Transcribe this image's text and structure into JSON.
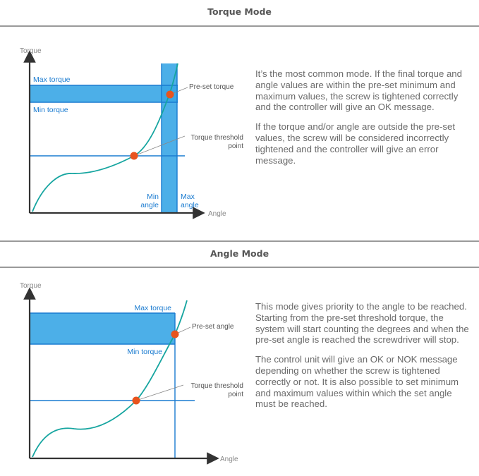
{
  "colors": {
    "blue": "#1a7bd0",
    "band": "#39a6e6",
    "curve": "#16a5a0",
    "marker": "#e8541e",
    "axis": "#333333",
    "rule": "#9a9a9a"
  },
  "torque_mode": {
    "title": "Torque Mode",
    "diagram": {
      "y_axis": "Torque",
      "x_axis": "Angle",
      "max_torque": "Max torque",
      "min_torque": "Min torque",
      "preset": "Pre-set torque",
      "threshold_line1": "Torque threshold",
      "threshold_line2": "point",
      "min_angle_line1": "Min",
      "min_angle_line2": "angle",
      "max_angle_line1": "Max",
      "max_angle_line2": "angle"
    },
    "paragraphs": [
      "It’s the most common mode. If the final torque and angle values are within the pre-set minimum and maximum values, the screw is tightened correctly and the controller will give an OK message.",
      "If the torque and/or angle are outside the pre-set values, the screw will be considered incorrectly tightened and the controller will give an error message."
    ]
  },
  "angle_mode": {
    "title": "Angle Mode",
    "diagram": {
      "y_axis": "Torque",
      "x_axis": "Angle",
      "max_torque": "Max torque",
      "min_torque": "Min torque",
      "preset": "Pre-set angle",
      "threshold_line1": "Torque threshold",
      "threshold_line2": "point"
    },
    "paragraphs": [
      "This mode gives priority to the angle to be reached. Starting from the pre-set threshold torque, the system will start counting the degrees and when the pre-set angle is reached the screwdriver will stop.",
      "The control unit will give an OK or NOK message depending on whether the screw is tightened correctly or not. It is also possible to set minimum and maximum values within which the set angle must be reached."
    ]
  }
}
